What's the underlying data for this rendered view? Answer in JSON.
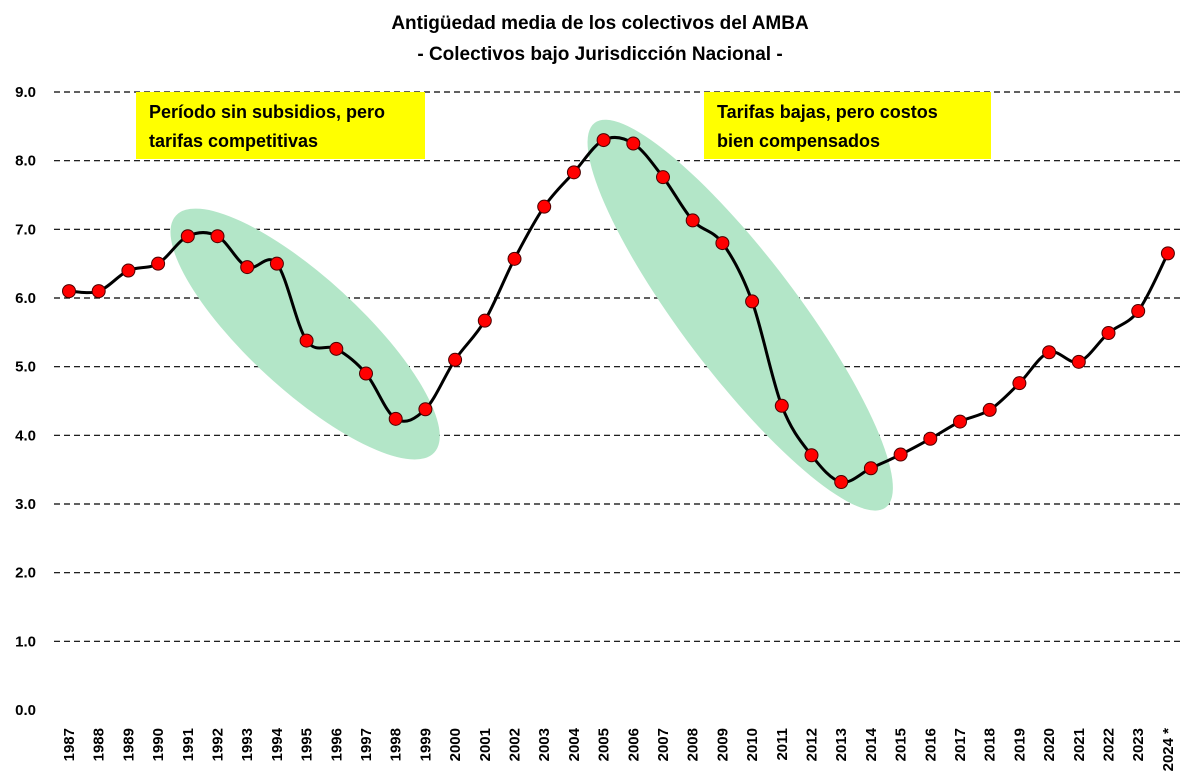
{
  "chart_data": {
    "type": "line",
    "title": "Antigüedad media de los colectivos del AMBA",
    "subtitle": "- Colectivos bajo Jurisdicción Nacional -",
    "xlabel": "",
    "ylabel": "",
    "ylim": [
      0,
      9
    ],
    "y_ticks": [
      "0.0",
      "1.0",
      "2.0",
      "3.0",
      "4.0",
      "5.0",
      "6.0",
      "7.0",
      "8.0",
      "9.0"
    ],
    "grid": "horizontal dashed",
    "categories": [
      "1987",
      "1988",
      "1989",
      "1990",
      "1991",
      "1992",
      "1993",
      "1994",
      "1995",
      "1996",
      "1997",
      "1998",
      "1999",
      "2000",
      "2001",
      "2002",
      "2003",
      "2004",
      "2005",
      "2006",
      "2007",
      "2008",
      "2009",
      "2010",
      "2011",
      "2012",
      "2013",
      "2014",
      "2015",
      "2016",
      "2017",
      "2018",
      "2019",
      "2020",
      "2021",
      "2022",
      "2023",
      "2024 *"
    ],
    "series": [
      {
        "values": [
          6.1,
          6.1,
          6.4,
          6.5,
          6.9,
          6.9,
          6.45,
          6.5,
          5.38,
          5.26,
          4.9,
          4.24,
          4.38,
          5.1,
          5.67,
          6.57,
          7.33,
          7.83,
          8.3,
          8.25,
          7.76,
          7.13,
          6.8,
          5.95,
          4.43,
          3.71,
          3.32,
          3.52,
          3.72,
          3.95,
          4.2,
          4.37,
          4.76,
          5.21,
          5.07,
          5.49,
          5.81,
          6.65
        ],
        "line_color": "#000000",
        "marker_color": "#ff0000"
      }
    ],
    "annotations": [
      {
        "text_lines": [
          "Período sin subsidios, pero",
          "tarifas competitivas"
        ],
        "background": "#ffff00"
      },
      {
        "text_lines": [
          "Tarifas bajas, pero costos",
          "bien compensados"
        ],
        "background": "#ffff00"
      }
    ],
    "highlight_color": "#b3e6c8"
  }
}
